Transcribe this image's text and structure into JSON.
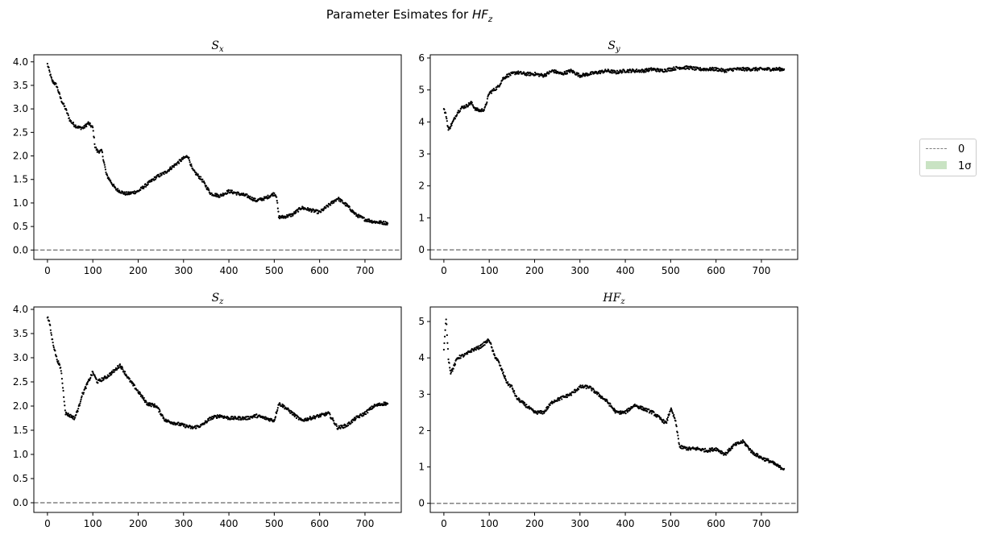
{
  "figure": {
    "title_prefix": "Parameter Esimates for ",
    "title_math": {
      "base": "HF",
      "sub": "z"
    }
  },
  "legend": {
    "items": [
      {
        "label": "0",
        "style": "dashed-line",
        "color": "#808080"
      },
      {
        "label": "1σ",
        "style": "patch",
        "color": "#c9e3c3"
      }
    ],
    "placement": "right, outside axes"
  },
  "colors": {
    "points": "#000000",
    "zero_line": "#808080",
    "sigma_band": "#c9e3c3"
  },
  "chart_data": [
    {
      "type": "scatter",
      "title": {
        "base": "S",
        "sub": "x"
      },
      "xlim": [
        -30,
        780
      ],
      "ylim": [
        -0.2,
        4.15
      ],
      "xticks": [
        0,
        100,
        200,
        300,
        400,
        500,
        600,
        700
      ],
      "yticks": [
        "0.0",
        "0.5",
        "1.0",
        "1.5",
        "2.0",
        "2.5",
        "3.0",
        "3.5",
        "4.0"
      ],
      "zero_line": 0,
      "x": [
        0,
        10,
        20,
        30,
        40,
        50,
        60,
        70,
        80,
        90,
        100,
        105,
        110,
        120,
        130,
        140,
        150,
        160,
        170,
        180,
        200,
        220,
        240,
        260,
        280,
        300,
        310,
        320,
        340,
        360,
        380,
        400,
        420,
        440,
        460,
        480,
        500,
        505,
        510,
        520,
        540,
        560,
        580,
        600,
        620,
        640,
        660,
        680,
        700,
        720,
        740,
        750
      ],
      "y": [
        3.95,
        3.6,
        3.5,
        3.2,
        3.0,
        2.75,
        2.65,
        2.6,
        2.6,
        2.7,
        2.6,
        2.2,
        2.1,
        2.1,
        1.6,
        1.45,
        1.3,
        1.25,
        1.2,
        1.2,
        1.25,
        1.4,
        1.55,
        1.65,
        1.8,
        1.95,
        2.0,
        1.7,
        1.5,
        1.2,
        1.15,
        1.25,
        1.2,
        1.15,
        1.05,
        1.1,
        1.2,
        1.15,
        0.7,
        0.7,
        0.75,
        0.9,
        0.85,
        0.8,
        0.95,
        1.1,
        0.95,
        0.75,
        0.65,
        0.6,
        0.58,
        0.57
      ]
    },
    {
      "type": "scatter",
      "title": {
        "base": "S",
        "sub": "y"
      },
      "xlim": [
        -30,
        780
      ],
      "ylim": [
        -0.3,
        6.1
      ],
      "xticks": [
        0,
        100,
        200,
        300,
        400,
        500,
        600,
        700
      ],
      "yticks": [
        "0",
        "1",
        "2",
        "3",
        "4",
        "5",
        "6"
      ],
      "zero_line": 0,
      "x": [
        0,
        5,
        10,
        20,
        30,
        40,
        50,
        60,
        70,
        80,
        90,
        100,
        110,
        120,
        130,
        140,
        160,
        180,
        200,
        220,
        240,
        260,
        280,
        300,
        320,
        340,
        360,
        380,
        400,
        420,
        440,
        460,
        480,
        500,
        520,
        540,
        560,
        580,
        600,
        620,
        640,
        660,
        680,
        700,
        720,
        750
      ],
      "y": [
        4.4,
        4.2,
        3.75,
        4.0,
        4.3,
        4.45,
        4.5,
        4.6,
        4.4,
        4.35,
        4.4,
        4.9,
        5.0,
        5.1,
        5.35,
        5.45,
        5.55,
        5.5,
        5.5,
        5.45,
        5.6,
        5.5,
        5.6,
        5.45,
        5.5,
        5.55,
        5.6,
        5.55,
        5.6,
        5.6,
        5.6,
        5.65,
        5.6,
        5.65,
        5.7,
        5.7,
        5.65,
        5.65,
        5.65,
        5.6,
        5.65,
        5.65,
        5.65,
        5.65,
        5.65,
        5.65
      ]
    },
    {
      "type": "scatter",
      "title": {
        "base": "S",
        "sub": "z"
      },
      "xlim": [
        -30,
        780
      ],
      "ylim": [
        -0.2,
        4.05
      ],
      "xticks": [
        0,
        100,
        200,
        300,
        400,
        500,
        600,
        700
      ],
      "yticks": [
        "0.0",
        "0.5",
        "1.0",
        "1.5",
        "2.0",
        "2.5",
        "3.0",
        "3.5",
        "4.0"
      ],
      "zero_line": 0,
      "x": [
        0,
        5,
        10,
        20,
        30,
        35,
        40,
        50,
        60,
        70,
        75,
        80,
        90,
        100,
        110,
        120,
        130,
        150,
        160,
        170,
        180,
        200,
        220,
        240,
        260,
        280,
        300,
        320,
        340,
        360,
        380,
        400,
        420,
        440,
        460,
        480,
        500,
        510,
        520,
        540,
        560,
        580,
        600,
        620,
        640,
        660,
        680,
        700,
        720,
        740,
        750
      ],
      "y": [
        3.85,
        3.7,
        3.4,
        3.0,
        2.75,
        2.3,
        1.85,
        1.8,
        1.75,
        2.0,
        2.2,
        2.3,
        2.5,
        2.7,
        2.5,
        2.55,
        2.6,
        2.75,
        2.85,
        2.7,
        2.55,
        2.3,
        2.05,
        2.0,
        1.7,
        1.65,
        1.6,
        1.55,
        1.6,
        1.75,
        1.8,
        1.75,
        1.75,
        1.75,
        1.8,
        1.75,
        1.7,
        2.05,
        2.0,
        1.85,
        1.7,
        1.75,
        1.8,
        1.85,
        1.55,
        1.6,
        1.75,
        1.85,
        2.0,
        2.05,
        2.05
      ]
    },
    {
      "type": "scatter",
      "title": {
        "base": "HF",
        "sub": "z"
      },
      "xlim": [
        -30,
        780
      ],
      "ylim": [
        -0.25,
        5.4
      ],
      "xticks": [
        0,
        100,
        200,
        300,
        400,
        500,
        600,
        700
      ],
      "yticks": [
        "0",
        "1",
        "2",
        "3",
        "4",
        "5"
      ],
      "zero_line": 0,
      "x": [
        0,
        5,
        10,
        15,
        20,
        30,
        40,
        50,
        60,
        70,
        80,
        90,
        100,
        110,
        120,
        130,
        140,
        150,
        160,
        180,
        200,
        220,
        240,
        260,
        280,
        300,
        320,
        340,
        360,
        380,
        400,
        420,
        440,
        460,
        480,
        490,
        500,
        510,
        520,
        540,
        560,
        580,
        600,
        620,
        640,
        660,
        680,
        700,
        720,
        740,
        750
      ],
      "y": [
        4.2,
        5.1,
        4.0,
        3.6,
        3.7,
        4.0,
        4.05,
        4.1,
        4.2,
        4.25,
        4.3,
        4.4,
        4.5,
        4.1,
        3.9,
        3.6,
        3.3,
        3.2,
        2.9,
        2.7,
        2.5,
        2.5,
        2.8,
        2.9,
        3.0,
        3.2,
        3.2,
        3.0,
        2.8,
        2.5,
        2.5,
        2.7,
        2.6,
        2.5,
        2.3,
        2.2,
        2.6,
        2.3,
        1.55,
        1.5,
        1.5,
        1.45,
        1.5,
        1.35,
        1.6,
        1.7,
        1.4,
        1.25,
        1.15,
        1.0,
        0.95
      ]
    }
  ]
}
